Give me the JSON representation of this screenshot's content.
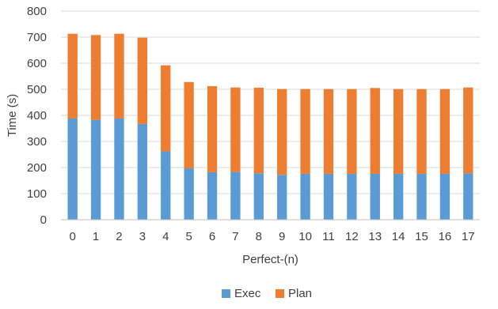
{
  "chart_data": {
    "type": "bar",
    "stacked": true,
    "categories": [
      "0",
      "1",
      "2",
      "3",
      "4",
      "5",
      "6",
      "7",
      "8",
      "9",
      "10",
      "11",
      "12",
      "13",
      "14",
      "15",
      "16",
      "17"
    ],
    "series": [
      {
        "name": "Exec",
        "color": "#5b9bd5",
        "values": [
          388,
          383,
          388,
          367,
          262,
          197,
          182,
          183,
          178,
          172,
          176,
          176,
          176,
          176,
          176,
          176,
          176,
          178
        ]
      },
      {
        "name": "Plan",
        "color": "#ed7d31",
        "values": [
          325,
          325,
          325,
          331,
          330,
          331,
          330,
          324,
          328,
          329,
          325,
          325,
          325,
          329,
          325,
          325,
          325,
          329
        ]
      }
    ],
    "xlabel": "Perfect-(n)",
    "ylabel": "Time (s)",
    "ylim": [
      0,
      800
    ],
    "yticks": [
      0,
      100,
      200,
      300,
      400,
      500,
      600,
      700,
      800
    ],
    "grid": true,
    "legend": "bottom"
  }
}
